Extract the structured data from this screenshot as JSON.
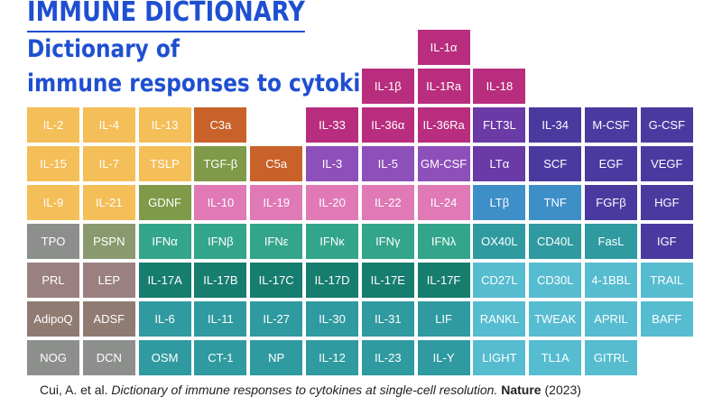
{
  "header": {
    "title": "IMMUNE DICTIONARY",
    "subtitle_line1": "Dictionary of",
    "subtitle_line2": "immune responses to cytokines"
  },
  "colors": {
    "title": "#1f4fd1",
    "yellow": "#f4be58",
    "orange_brown": "#c8622a",
    "olive_green": "#7f9a48",
    "magenta": "#b82d7e",
    "purple_violet": "#8d4fb9",
    "light_purple": "#a77ed8",
    "pink": "#e079b6",
    "deep_purple": "#6a3aa7",
    "indigo": "#4a3aa0",
    "gray": "#8d8f8d",
    "sage": "#8b9a6e",
    "mauve_gray": "#9a8080",
    "brown_gray": "#8f7b72",
    "green": "#33a58a",
    "dark_teal": "#177d6f",
    "teal": "#2f9aa0",
    "cyan": "#56bcd0",
    "blue": "#3e8fc8"
  },
  "cells": [
    {
      "label": "IL-1α",
      "row": 0,
      "col": 7,
      "color": "#b82d7e"
    },
    {
      "label": "IL-1β",
      "row": 1,
      "col": 6,
      "color": "#b82d7e"
    },
    {
      "label": "IL-1Ra",
      "row": 1,
      "col": 7,
      "color": "#b82d7e"
    },
    {
      "label": "IL-18",
      "row": 1,
      "col": 8,
      "color": "#b82d7e"
    },
    {
      "label": "IL-2",
      "row": 2,
      "col": 0,
      "color": "#f4be58"
    },
    {
      "label": "IL-4",
      "row": 2,
      "col": 1,
      "color": "#f4be58"
    },
    {
      "label": "IL-13",
      "row": 2,
      "col": 2,
      "color": "#f4be58"
    },
    {
      "label": "C3a",
      "row": 2,
      "col": 3,
      "color": "#c8622a"
    },
    {
      "label": "IL-33",
      "row": 2,
      "col": 5,
      "color": "#b82d7e"
    },
    {
      "label": "IL-36α",
      "row": 2,
      "col": 6,
      "color": "#b82d7e"
    },
    {
      "label": "IL-36Ra",
      "row": 2,
      "col": 7,
      "color": "#b82d7e"
    },
    {
      "label": "FLT3L",
      "row": 2,
      "col": 8,
      "color": "#6a3aa7"
    },
    {
      "label": "IL-34",
      "row": 2,
      "col": 9,
      "color": "#4a3aa0"
    },
    {
      "label": "M-CSF",
      "row": 2,
      "col": 10,
      "color": "#4a3aa0"
    },
    {
      "label": "G-CSF",
      "row": 2,
      "col": 11,
      "color": "#4a3aa0"
    },
    {
      "label": "IL-15",
      "row": 3,
      "col": 0,
      "color": "#f4be58"
    },
    {
      "label": "IL-7",
      "row": 3,
      "col": 1,
      "color": "#f4be58"
    },
    {
      "label": "TSLP",
      "row": 3,
      "col": 2,
      "color": "#f4be58"
    },
    {
      "label": "TGF-β",
      "row": 3,
      "col": 3,
      "color": "#7f9a48"
    },
    {
      "label": "C5a",
      "row": 3,
      "col": 4,
      "color": "#c8622a"
    },
    {
      "label": "IL-3",
      "row": 3,
      "col": 5,
      "color": "#8d4fb9"
    },
    {
      "label": "IL-5",
      "row": 3,
      "col": 6,
      "color": "#8d4fb9"
    },
    {
      "label": "GM-CSF",
      "row": 3,
      "col": 7,
      "color": "#8d4fb9"
    },
    {
      "label": "LTα",
      "row": 3,
      "col": 8,
      "color": "#6a3aa7"
    },
    {
      "label": "SCF",
      "row": 3,
      "col": 9,
      "color": "#4a3aa0"
    },
    {
      "label": "EGF",
      "row": 3,
      "col": 10,
      "color": "#4a3aa0"
    },
    {
      "label": "VEGF",
      "row": 3,
      "col": 11,
      "color": "#4a3aa0"
    },
    {
      "label": "IL-9",
      "row": 4,
      "col": 0,
      "color": "#f4be58"
    },
    {
      "label": "IL-21",
      "row": 4,
      "col": 1,
      "color": "#f4be58"
    },
    {
      "label": "GDNF",
      "row": 4,
      "col": 2,
      "color": "#7f9a48"
    },
    {
      "label": "IL-10",
      "row": 4,
      "col": 3,
      "color": "#e079b6"
    },
    {
      "label": "IL-19",
      "row": 4,
      "col": 4,
      "color": "#e079b6"
    },
    {
      "label": "IL-20",
      "row": 4,
      "col": 5,
      "color": "#e079b6"
    },
    {
      "label": "IL-22",
      "row": 4,
      "col": 6,
      "color": "#e079b6"
    },
    {
      "label": "IL-24",
      "row": 4,
      "col": 7,
      "color": "#e079b6"
    },
    {
      "label": "LTβ",
      "row": 4,
      "col": 8,
      "color": "#3e8fc8"
    },
    {
      "label": "TNF",
      "row": 4,
      "col": 9,
      "color": "#3e8fc8"
    },
    {
      "label": "FGFβ",
      "row": 4,
      "col": 10,
      "color": "#4a3aa0"
    },
    {
      "label": "HGF",
      "row": 4,
      "col": 11,
      "color": "#4a3aa0"
    },
    {
      "label": "TPO",
      "row": 5,
      "col": 0,
      "color": "#8d8f8d"
    },
    {
      "label": "PSPN",
      "row": 5,
      "col": 1,
      "color": "#8b9a6e"
    },
    {
      "label": "IFNα",
      "row": 5,
      "col": 2,
      "color": "#33a58a"
    },
    {
      "label": "IFNβ",
      "row": 5,
      "col": 3,
      "color": "#33a58a"
    },
    {
      "label": "IFNε",
      "row": 5,
      "col": 4,
      "color": "#33a58a"
    },
    {
      "label": "IFNκ",
      "row": 5,
      "col": 5,
      "color": "#33a58a"
    },
    {
      "label": "IFNγ",
      "row": 5,
      "col": 6,
      "color": "#33a58a"
    },
    {
      "label": "IFNλ",
      "row": 5,
      "col": 7,
      "color": "#33a58a"
    },
    {
      "label": "OX40L",
      "row": 5,
      "col": 8,
      "color": "#2f9aa0"
    },
    {
      "label": "CD40L",
      "row": 5,
      "col": 9,
      "color": "#2f9aa0"
    },
    {
      "label": "FasL",
      "row": 5,
      "col": 10,
      "color": "#2f9aa0"
    },
    {
      "label": "IGF",
      "row": 5,
      "col": 11,
      "color": "#4a3aa0"
    },
    {
      "label": "PRL",
      "row": 6,
      "col": 0,
      "color": "#9a8080"
    },
    {
      "label": "LEP",
      "row": 6,
      "col": 1,
      "color": "#9a8080"
    },
    {
      "label": "IL-17A",
      "row": 6,
      "col": 2,
      "color": "#177d6f"
    },
    {
      "label": "IL-17B",
      "row": 6,
      "col": 3,
      "color": "#177d6f"
    },
    {
      "label": "IL-17C",
      "row": 6,
      "col": 4,
      "color": "#177d6f"
    },
    {
      "label": "IL-17D",
      "row": 6,
      "col": 5,
      "color": "#177d6f"
    },
    {
      "label": "IL-17E",
      "row": 6,
      "col": 6,
      "color": "#177d6f"
    },
    {
      "label": "IL-17F",
      "row": 6,
      "col": 7,
      "color": "#177d6f"
    },
    {
      "label": "CD27L",
      "row": 6,
      "col": 8,
      "color": "#56bcd0"
    },
    {
      "label": "CD30L",
      "row": 6,
      "col": 9,
      "color": "#56bcd0"
    },
    {
      "label": "4-1BBL",
      "row": 6,
      "col": 10,
      "color": "#56bcd0"
    },
    {
      "label": "TRAIL",
      "row": 6,
      "col": 11,
      "color": "#56bcd0"
    },
    {
      "label": "AdipoQ",
      "row": 7,
      "col": 0,
      "color": "#8f7b72"
    },
    {
      "label": "ADSF",
      "row": 7,
      "col": 1,
      "color": "#8f7b72"
    },
    {
      "label": "IL-6",
      "row": 7,
      "col": 2,
      "color": "#2f9aa0"
    },
    {
      "label": "IL-11",
      "row": 7,
      "col": 3,
      "color": "#2f9aa0"
    },
    {
      "label": "IL-27",
      "row": 7,
      "col": 4,
      "color": "#2f9aa0"
    },
    {
      "label": "IL-30",
      "row": 7,
      "col": 5,
      "color": "#2f9aa0"
    },
    {
      "label": "IL-31",
      "row": 7,
      "col": 6,
      "color": "#2f9aa0"
    },
    {
      "label": "LIF",
      "row": 7,
      "col": 7,
      "color": "#2f9aa0"
    },
    {
      "label": "RANKL",
      "row": 7,
      "col": 8,
      "color": "#56bcd0"
    },
    {
      "label": "TWEAK",
      "row": 7,
      "col": 9,
      "color": "#56bcd0"
    },
    {
      "label": "APRIL",
      "row": 7,
      "col": 10,
      "color": "#56bcd0"
    },
    {
      "label": "BAFF",
      "row": 7,
      "col": 11,
      "color": "#56bcd0"
    },
    {
      "label": "NOG",
      "row": 8,
      "col": 0,
      "color": "#8d8f8d"
    },
    {
      "label": "DCN",
      "row": 8,
      "col": 1,
      "color": "#8d8f8d"
    },
    {
      "label": "OSM",
      "row": 8,
      "col": 2,
      "color": "#2f9aa0"
    },
    {
      "label": "CT-1",
      "row": 8,
      "col": 3,
      "color": "#2f9aa0"
    },
    {
      "label": "NP",
      "row": 8,
      "col": 4,
      "color": "#2f9aa0"
    },
    {
      "label": "IL-12",
      "row": 8,
      "col": 5,
      "color": "#2f9aa0"
    },
    {
      "label": "IL-23",
      "row": 8,
      "col": 6,
      "color": "#2f9aa0"
    },
    {
      "label": "IL-Y",
      "row": 8,
      "col": 7,
      "color": "#2f9aa0"
    },
    {
      "label": "LIGHT",
      "row": 8,
      "col": 8,
      "color": "#56bcd0"
    },
    {
      "label": "TL1A",
      "row": 8,
      "col": 9,
      "color": "#56bcd0"
    },
    {
      "label": "GITRL",
      "row": 8,
      "col": 10,
      "color": "#56bcd0"
    }
  ],
  "citation": {
    "authors": "Cui, A. et al.",
    "article": "Dictionary of immune responses to cytokines at single-cell resolution.",
    "journal": "Nature",
    "year": "(2023)"
  }
}
